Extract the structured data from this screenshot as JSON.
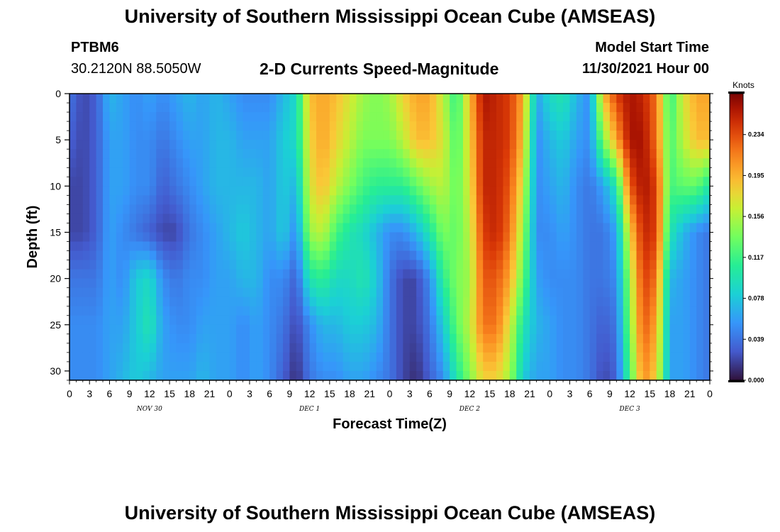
{
  "header": {
    "title": "University of Southern Mississippi Ocean Cube (AMSEAS)",
    "station": "PTBM6",
    "coordinates": "30.2120N  88.5050W",
    "subtitle": "2-D Currents Speed-Magnitude",
    "model_start_label": "Model Start Time",
    "model_start_value": "11/30/2021 Hour 00"
  },
  "footer": {
    "title": "University of Southern Mississippi Ocean Cube (AMSEAS)"
  },
  "chart_data": {
    "type": "heatmap",
    "title": "2-D Currents Speed-Magnitude",
    "xlabel": "Forecast Time(Z)",
    "ylabel": "Depth (ft)",
    "x_tick_labels": [
      "0",
      "3",
      "6",
      "9",
      "12",
      "15",
      "18",
      "21",
      "0",
      "3",
      "6",
      "9",
      "12",
      "15",
      "18",
      "21",
      "0",
      "3",
      "6",
      "9",
      "12",
      "15",
      "18",
      "21",
      "0",
      "3",
      "6",
      "9",
      "12",
      "15",
      "18",
      "21",
      "0"
    ],
    "day_labels": [
      {
        "text": "NOV 30",
        "hour": 12
      },
      {
        "text": "DEC 1",
        "hour": 36
      },
      {
        "text": "DEC 2",
        "hour": 60
      },
      {
        "text": "DEC 3",
        "hour": 84
      }
    ],
    "xlim_hours": [
      0,
      96
    ],
    "y_ticks": [
      0,
      5,
      10,
      15,
      20,
      25,
      30
    ],
    "ylim_ft": [
      0,
      31
    ],
    "colorbar": {
      "label": "Knots",
      "ticks": [
        "0.000",
        "0.039",
        "0.078",
        "0.117",
        "0.156",
        "0.195",
        "0.234"
      ],
      "range": [
        0,
        0.273
      ]
    },
    "grid_hours": [
      0,
      2,
      4,
      6,
      8,
      10,
      12,
      14,
      16,
      18,
      20,
      22,
      24,
      26,
      28,
      30,
      32,
      34,
      36,
      38,
      40,
      42,
      44,
      46,
      48,
      50,
      52,
      54,
      56,
      58,
      60,
      62,
      64,
      66,
      68,
      70,
      72,
      74,
      76,
      78,
      80,
      82,
      84,
      86,
      88,
      90,
      92,
      94,
      96
    ],
    "grid_depths_ft": [
      0,
      5,
      10,
      15,
      20,
      25,
      31
    ],
    "values_knots": [
      [
        0.04,
        0.02,
        0.03,
        0.07,
        0.06,
        0.05,
        0.06,
        0.05,
        0.06,
        0.07,
        0.06,
        0.07,
        0.06,
        0.05,
        0.05,
        0.05,
        0.07,
        0.09,
        0.19,
        0.2,
        0.19,
        0.17,
        0.15,
        0.14,
        0.15,
        0.18,
        0.2,
        0.2,
        0.16,
        0.11,
        0.19,
        0.26,
        0.25,
        0.24,
        0.2,
        0.06,
        0.09,
        0.1,
        0.07,
        0.05,
        0.19,
        0.24,
        0.26,
        0.25,
        0.22,
        0.11,
        0.17,
        0.2,
        0.2
      ],
      [
        0.03,
        0.02,
        0.03,
        0.06,
        0.06,
        0.05,
        0.05,
        0.04,
        0.05,
        0.06,
        0.06,
        0.07,
        0.07,
        0.06,
        0.06,
        0.06,
        0.08,
        0.09,
        0.18,
        0.2,
        0.18,
        0.16,
        0.14,
        0.14,
        0.14,
        0.16,
        0.19,
        0.19,
        0.17,
        0.12,
        0.18,
        0.25,
        0.25,
        0.24,
        0.19,
        0.05,
        0.07,
        0.08,
        0.06,
        0.05,
        0.14,
        0.2,
        0.26,
        0.26,
        0.22,
        0.12,
        0.16,
        0.19,
        0.19
      ],
      [
        0.02,
        0.02,
        0.03,
        0.06,
        0.06,
        0.05,
        0.05,
        0.03,
        0.04,
        0.05,
        0.06,
        0.07,
        0.07,
        0.07,
        0.07,
        0.06,
        0.08,
        0.07,
        0.17,
        0.19,
        0.16,
        0.14,
        0.12,
        0.11,
        0.11,
        0.11,
        0.13,
        0.15,
        0.16,
        0.13,
        0.17,
        0.25,
        0.25,
        0.23,
        0.17,
        0.05,
        0.06,
        0.07,
        0.05,
        0.04,
        0.06,
        0.1,
        0.23,
        0.26,
        0.24,
        0.12,
        0.13,
        0.13,
        0.1
      ],
      [
        0.02,
        0.02,
        0.03,
        0.06,
        0.05,
        0.04,
        0.03,
        0.02,
        0.02,
        0.04,
        0.05,
        0.06,
        0.07,
        0.08,
        0.07,
        0.06,
        0.08,
        0.05,
        0.15,
        0.16,
        0.12,
        0.1,
        0.09,
        0.07,
        0.05,
        0.05,
        0.07,
        0.1,
        0.14,
        0.13,
        0.16,
        0.24,
        0.25,
        0.22,
        0.15,
        0.05,
        0.05,
        0.06,
        0.05,
        0.04,
        0.04,
        0.06,
        0.18,
        0.25,
        0.24,
        0.1,
        0.07,
        0.05,
        0.04
      ],
      [
        0.04,
        0.04,
        0.04,
        0.06,
        0.05,
        0.08,
        0.09,
        0.05,
        0.04,
        0.05,
        0.05,
        0.06,
        0.06,
        0.07,
        0.07,
        0.05,
        0.05,
        0.03,
        0.1,
        0.11,
        0.09,
        0.09,
        0.1,
        0.08,
        0.04,
        0.02,
        0.02,
        0.05,
        0.11,
        0.14,
        0.15,
        0.23,
        0.23,
        0.2,
        0.13,
        0.06,
        0.05,
        0.05,
        0.05,
        0.04,
        0.04,
        0.05,
        0.15,
        0.24,
        0.22,
        0.07,
        0.06,
        0.05,
        0.04
      ],
      [
        0.05,
        0.05,
        0.05,
        0.06,
        0.06,
        0.08,
        0.1,
        0.06,
        0.05,
        0.05,
        0.06,
        0.06,
        0.06,
        0.05,
        0.06,
        0.05,
        0.04,
        0.02,
        0.05,
        0.07,
        0.07,
        0.08,
        0.08,
        0.07,
        0.04,
        0.02,
        0.02,
        0.04,
        0.08,
        0.13,
        0.16,
        0.22,
        0.22,
        0.17,
        0.1,
        0.07,
        0.06,
        0.05,
        0.05,
        0.04,
        0.03,
        0.04,
        0.14,
        0.23,
        0.2,
        0.06,
        0.06,
        0.05,
        0.04
      ],
      [
        0.05,
        0.05,
        0.05,
        0.06,
        0.07,
        0.08,
        0.07,
        0.06,
        0.06,
        0.06,
        0.07,
        0.06,
        0.06,
        0.05,
        0.06,
        0.05,
        0.03,
        0.01,
        0.04,
        0.05,
        0.05,
        0.06,
        0.06,
        0.05,
        0.04,
        0.02,
        0.01,
        0.03,
        0.05,
        0.1,
        0.14,
        0.18,
        0.18,
        0.15,
        0.08,
        0.06,
        0.06,
        0.05,
        0.05,
        0.04,
        0.02,
        0.03,
        0.12,
        0.21,
        0.18,
        0.06,
        0.06,
        0.05,
        0.04
      ]
    ]
  }
}
